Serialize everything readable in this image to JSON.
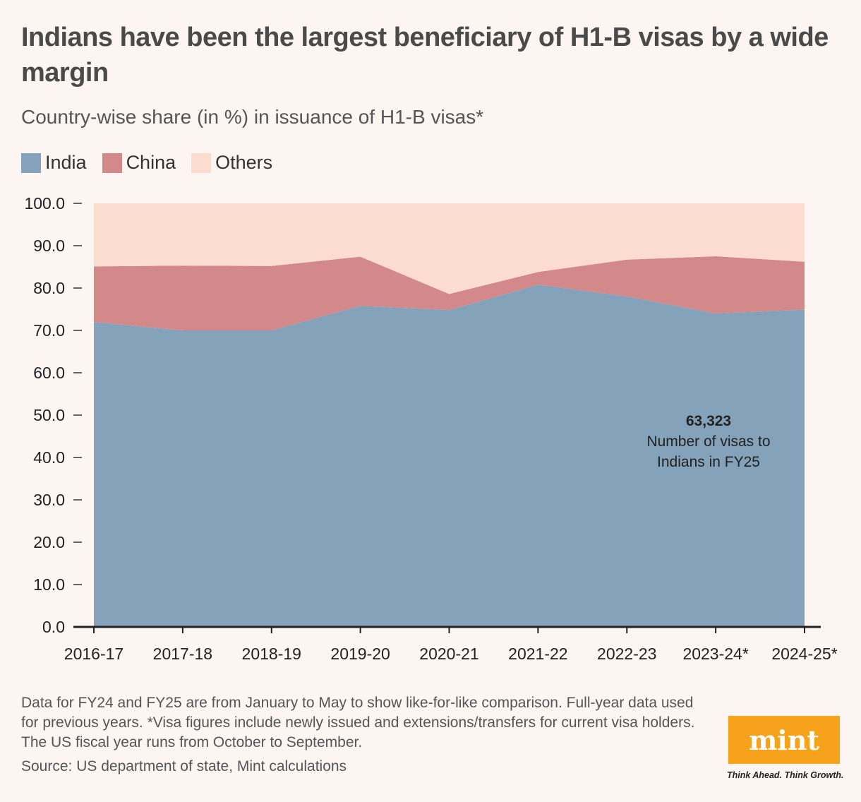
{
  "header": {
    "title": "Indians have been the largest beneficiary of H1-B visas by a wide margin",
    "subtitle": "Country-wise share (in %) in issuance of H1-B visas*"
  },
  "footer": {
    "footnote": "Data for FY24 and FY25 are from January to May to show like-for-like comparison. Full-year data used for previous years. *Visa figures include newly issued and extensions/transfers for current visa holders. The US fiscal year runs from October to September.",
    "source": "Source: US department of state, Mint calculations",
    "logo_text": "mint",
    "tagline": "Think Ahead. Think Growth."
  },
  "colors": {
    "india": "#84a2b9",
    "china": "#d3898a",
    "others": "#fcdccf",
    "logo": "#f7a21b",
    "background": "#fdf5f2"
  },
  "chart_data": {
    "type": "area",
    "stacked": true,
    "categories": [
      "2016-17",
      "2017-18",
      "2018-19",
      "2019-20",
      "2020-21",
      "2021-22",
      "2022-23",
      "2023-24*",
      "2024-25*"
    ],
    "series": [
      {
        "name": "India",
        "values": [
          72.0,
          70.0,
          70.0,
          75.8,
          74.8,
          80.8,
          78.0,
          74.0,
          74.9
        ]
      },
      {
        "name": "China",
        "values": [
          13.1,
          15.3,
          15.2,
          11.6,
          3.8,
          3.0,
          8.7,
          13.5,
          11.3
        ]
      },
      {
        "name": "Others",
        "values": [
          14.9,
          14.7,
          14.8,
          12.6,
          21.4,
          16.2,
          13.3,
          12.5,
          13.8
        ]
      }
    ],
    "yticks": [
      "100.0",
      "90.0",
      "80.0",
      "70.0",
      "60.0",
      "50.0",
      "40.0",
      "30.0",
      "20.0",
      "10.0",
      "0.0"
    ],
    "ylim": [
      0,
      100
    ],
    "grid": false,
    "legend_position": "top-left",
    "annotation": {
      "value": "63,323",
      "text_line1": "Number of visas to",
      "text_line2": "Indians in FY25"
    }
  }
}
